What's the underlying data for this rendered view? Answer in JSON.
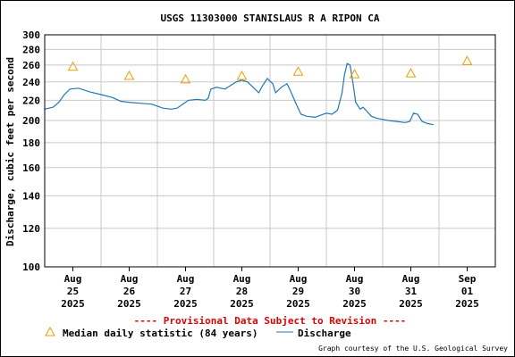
{
  "chart_data": {
    "type": "line",
    "title": "USGS 11303000 STANISLAUS R A RIPON CA",
    "ylabel": "Discharge, cubic feet per second",
    "yscale": "log",
    "ylim": [
      100,
      300
    ],
    "yticks": [
      100,
      120,
      140,
      160,
      180,
      200,
      220,
      240,
      260,
      280,
      300
    ],
    "grid": true,
    "xticks": [
      {
        "day": 0,
        "label": [
          "Aug",
          "25",
          "2025"
        ]
      },
      {
        "day": 1,
        "label": [
          "Aug",
          "26",
          "2025"
        ]
      },
      {
        "day": 2,
        "label": [
          "Aug",
          "27",
          "2025"
        ]
      },
      {
        "day": 3,
        "label": [
          "Aug",
          "28",
          "2025"
        ]
      },
      {
        "day": 4,
        "label": [
          "Aug",
          "29",
          "2025"
        ]
      },
      {
        "day": 5,
        "label": [
          "Aug",
          "30",
          "2025"
        ]
      },
      {
        "day": 6,
        "label": [
          "Aug",
          "31",
          "2025"
        ]
      },
      {
        "day": 7,
        "label": [
          "Sep",
          "01",
          "2025"
        ]
      }
    ],
    "xlim": [
      -0.5,
      7.5
    ],
    "series": [
      {
        "name": "Discharge",
        "color": "#1f78b4",
        "points": [
          [
            -0.5,
            211
          ],
          [
            -0.35,
            213
          ],
          [
            -0.25,
            218
          ],
          [
            -0.15,
            226
          ],
          [
            -0.05,
            232
          ],
          [
            0.1,
            233
          ],
          [
            0.3,
            229
          ],
          [
            0.5,
            226
          ],
          [
            0.7,
            223
          ],
          [
            0.85,
            219
          ],
          [
            1.0,
            218
          ],
          [
            1.2,
            217
          ],
          [
            1.4,
            216
          ],
          [
            1.5,
            214
          ],
          [
            1.6,
            212
          ],
          [
            1.75,
            211
          ],
          [
            1.85,
            212
          ],
          [
            1.95,
            216
          ],
          [
            2.05,
            220
          ],
          [
            2.2,
            221
          ],
          [
            2.35,
            220
          ],
          [
            2.4,
            222
          ],
          [
            2.45,
            232
          ],
          [
            2.55,
            234
          ],
          [
            2.7,
            232
          ],
          [
            2.8,
            236
          ],
          [
            2.9,
            240
          ],
          [
            3.0,
            242
          ],
          [
            3.1,
            240
          ],
          [
            3.2,
            234
          ],
          [
            3.3,
            228
          ],
          [
            3.35,
            234
          ],
          [
            3.45,
            244
          ],
          [
            3.55,
            238
          ],
          [
            3.6,
            228
          ],
          [
            3.7,
            234
          ],
          [
            3.8,
            238
          ],
          [
            3.85,
            232
          ],
          [
            3.95,
            218
          ],
          [
            4.05,
            206
          ],
          [
            4.15,
            204
          ],
          [
            4.3,
            203
          ],
          [
            4.4,
            205
          ],
          [
            4.5,
            207
          ],
          [
            4.6,
            206
          ],
          [
            4.7,
            210
          ],
          [
            4.78,
            228
          ],
          [
            4.82,
            248
          ],
          [
            4.87,
            262
          ],
          [
            4.92,
            260
          ],
          [
            4.97,
            240
          ],
          [
            5.02,
            218
          ],
          [
            5.1,
            211
          ],
          [
            5.15,
            213
          ],
          [
            5.2,
            210
          ],
          [
            5.3,
            204
          ],
          [
            5.4,
            202
          ],
          [
            5.5,
            201
          ],
          [
            5.6,
            200
          ],
          [
            5.75,
            199
          ],
          [
            5.9,
            198
          ],
          [
            5.98,
            199
          ],
          [
            6.05,
            207
          ],
          [
            6.12,
            206
          ],
          [
            6.2,
            199
          ],
          [
            6.3,
            197
          ],
          [
            6.4,
            196
          ]
        ]
      }
    ],
    "markers": {
      "name": "Median daily statistic (84 years)",
      "color": "#e8a000",
      "values": [
        {
          "day": 0,
          "value": 258
        },
        {
          "day": 1,
          "value": 247
        },
        {
          "day": 2,
          "value": 243
        },
        {
          "day": 3,
          "value": 247
        },
        {
          "day": 4,
          "value": 252
        },
        {
          "day": 5,
          "value": 249
        },
        {
          "day": 6,
          "value": 250
        },
        {
          "day": 7,
          "value": 265
        }
      ]
    },
    "notice": "---- Provisional Data Subject to Revision ----",
    "credit": "Graph courtesy of the U.S. Geological Survey"
  }
}
